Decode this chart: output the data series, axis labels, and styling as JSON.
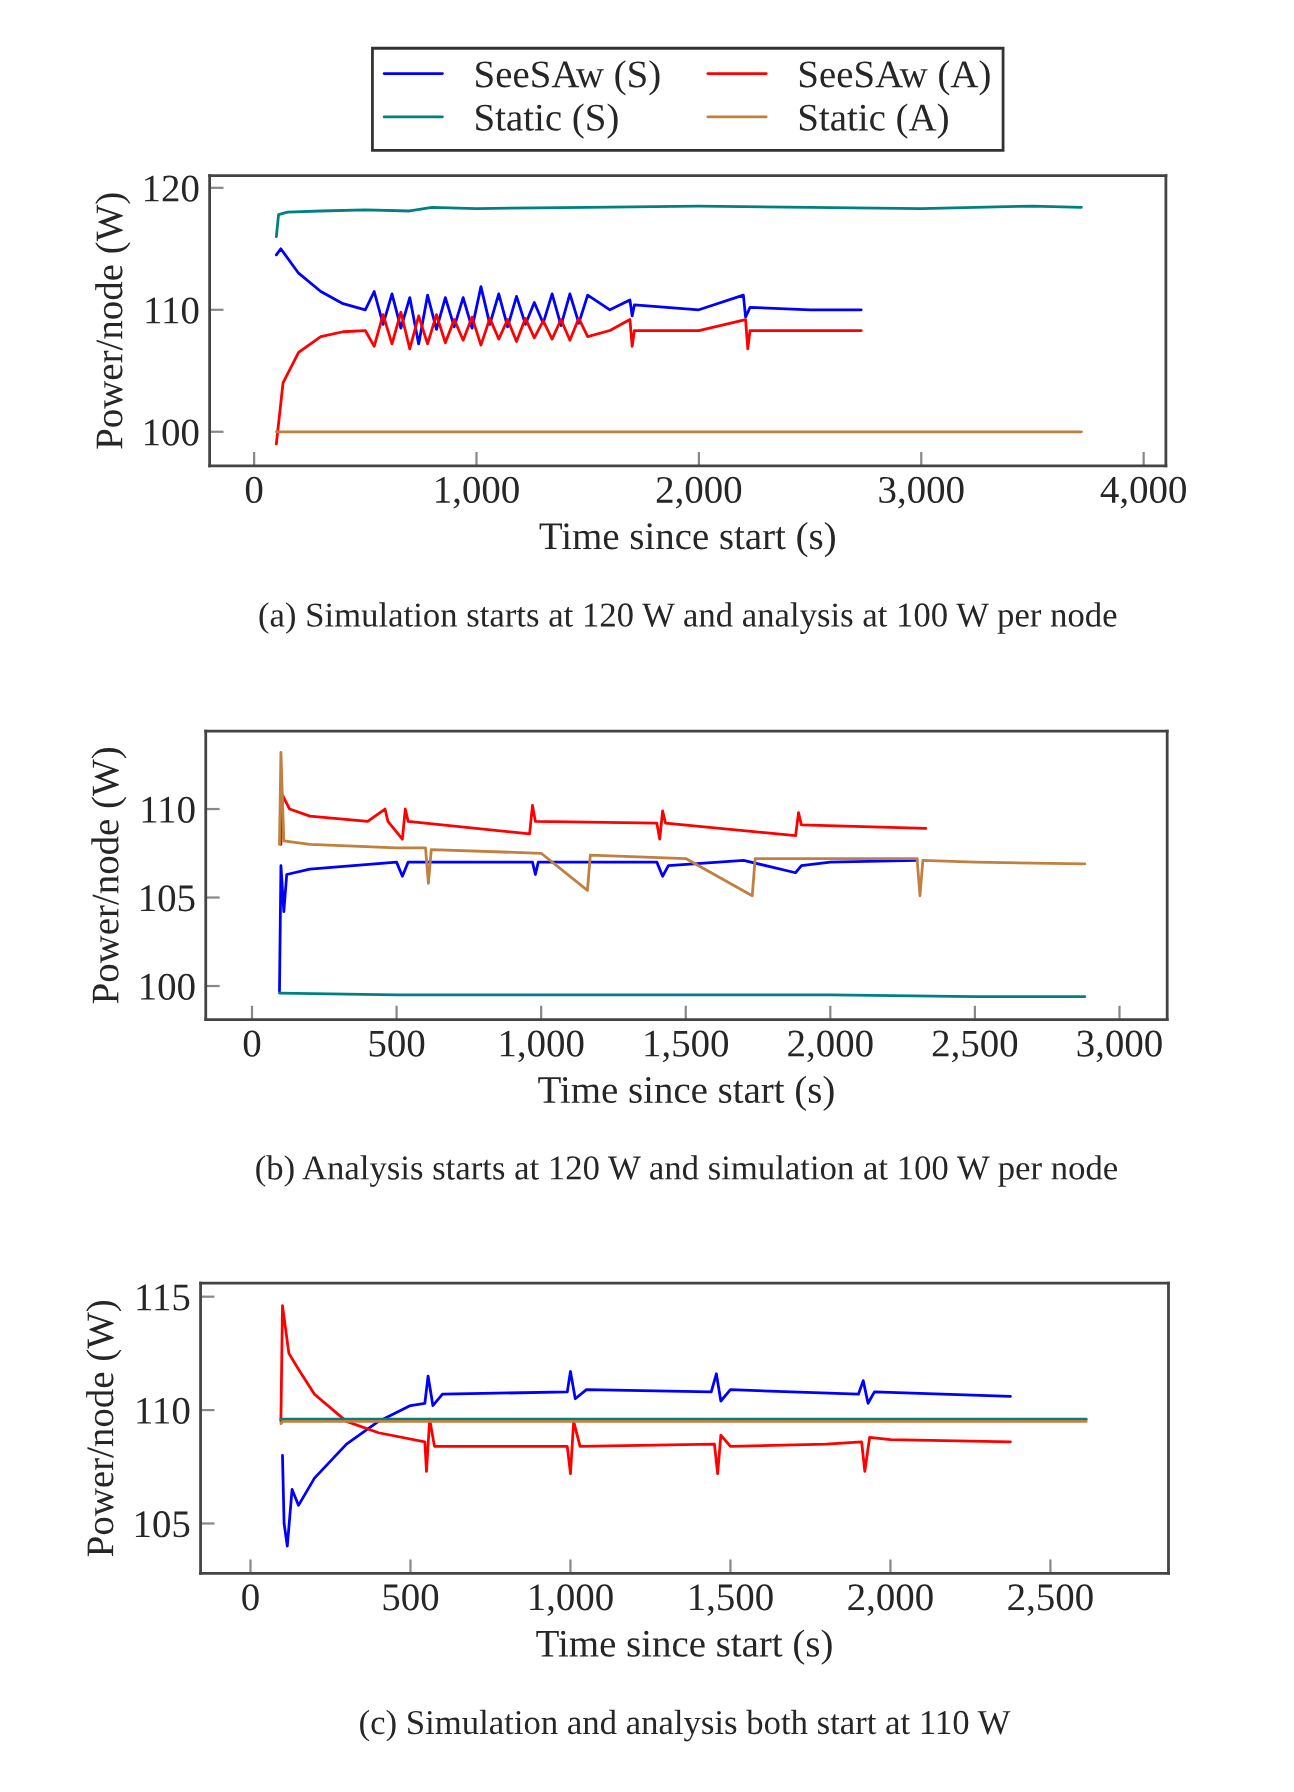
{
  "chart_data": [
    {
      "type": "line",
      "xlabel": "Time since start (s)",
      "ylabel": "Power/node (W)",
      "annotations": [
        "(a) Simulation starts at 120 W and analysis at 100 W per node"
      ],
      "xlim": [
        -200,
        4100
      ],
      "ylim": [
        97.2,
        121
      ],
      "xticks": [
        0,
        {
          "value": 1000,
          "label": "1,000"
        },
        {
          "value": 2000,
          "label": "2,000"
        },
        {
          "value": 3000,
          "label": "3,000"
        },
        {
          "value": 4000,
          "label": "4,000"
        }
      ],
      "yticks": [
        100,
        110,
        120
      ],
      "grid": false,
      "legend": "top",
      "line_style": "solid",
      "marker": "none",
      "series": [
        {
          "name": "SeeSAw (S)",
          "color": "#0000ff",
          "x": [
            100,
            120,
            200,
            300,
            400,
            500,
            540,
            580,
            620,
            660,
            700,
            740,
            780,
            820,
            860,
            900,
            940,
            980,
            1020,
            1060,
            1100,
            1140,
            1180,
            1220,
            1260,
            1300,
            1340,
            1380,
            1420,
            1460,
            1500,
            1600,
            1690,
            1700,
            1710,
            2000,
            2200,
            2210,
            2230,
            2500,
            2730
          ],
          "values": [
            114.5,
            115,
            113,
            111.5,
            110.5,
            110,
            111.5,
            108.8,
            111.3,
            108.5,
            111,
            107.2,
            111.2,
            108.4,
            111,
            108.6,
            111,
            108.5,
            111.9,
            108.8,
            111.3,
            108.6,
            111.1,
            108.8,
            110.6,
            108.9,
            111.3,
            108.7,
            111.3,
            108.9,
            111.2,
            110,
            110.8,
            109.5,
            110.4,
            110,
            111.2,
            109.4,
            110.2,
            110,
            110
          ]
        },
        {
          "name": "SeeSAw (A)",
          "color": "#ff0000",
          "x": [
            100,
            130,
            200,
            300,
            400,
            500,
            540,
            580,
            620,
            660,
            700,
            740,
            780,
            820,
            860,
            900,
            940,
            980,
            1020,
            1060,
            1100,
            1140,
            1180,
            1220,
            1260,
            1300,
            1340,
            1380,
            1420,
            1460,
            1500,
            1600,
            1690,
            1700,
            1710,
            2000,
            2210,
            2220,
            2230,
            2500,
            2730
          ],
          "values": [
            99,
            104,
            106.5,
            107.8,
            108.2,
            108.3,
            107,
            109.6,
            107.2,
            109.8,
            106.8,
            109.5,
            107.2,
            109.6,
            107.3,
            109.2,
            107.5,
            109.4,
            107.1,
            109.3,
            107.6,
            109.2,
            107.4,
            109.3,
            107.7,
            109.1,
            107.6,
            109.2,
            107.5,
            109.3,
            107.8,
            108.3,
            109.2,
            107,
            108.3,
            108.3,
            109.2,
            106.8,
            108.3,
            108.3,
            108.3
          ]
        },
        {
          "name": "Static (S)",
          "color": "#008080",
          "x": [
            100,
            110,
            150,
            300,
            500,
            700,
            800,
            1000,
            1500,
            2000,
            2500,
            3000,
            3500,
            3720
          ],
          "values": [
            116,
            117.8,
            118,
            118.1,
            118.2,
            118.1,
            118.4,
            118.3,
            118.4,
            118.5,
            118.4,
            118.3,
            118.5,
            118.4
          ]
        },
        {
          "name": "Static (A)",
          "color": "#bf8040",
          "x": [
            100,
            1000,
            2000,
            3000,
            3720
          ],
          "values": [
            100,
            100,
            100,
            100,
            100
          ]
        }
      ]
    },
    {
      "type": "line",
      "xlabel": "Time since start (s)",
      "ylabel": "Power/node (W)",
      "annotations": [
        "(b) Analysis starts at 120 W and simulation at 100 W per node"
      ],
      "xlim": [
        -160,
        3165
      ],
      "ylim": [
        98.1,
        114.4
      ],
      "xticks": [
        0,
        500,
        {
          "value": 1000,
          "label": "1,000"
        },
        {
          "value": 1500,
          "label": "1,500"
        },
        {
          "value": 2000,
          "label": "2,000"
        },
        {
          "value": 2500,
          "label": "2,500"
        },
        {
          "value": 3000,
          "label": "3,000"
        }
      ],
      "yticks": [
        100,
        105,
        110
      ],
      "grid": false,
      "line_style": "solid",
      "marker": "none",
      "series": [
        {
          "color": "#0000ff",
          "x": [
            95,
            100,
            110,
            120,
            200,
            500,
            520,
            540,
            970,
            980,
            990,
            1400,
            1420,
            1440,
            1700,
            1880,
            1900,
            2000,
            2300
          ],
          "values": [
            99.7,
            106.8,
            104.2,
            106.3,
            106.6,
            107,
            106.2,
            107,
            107,
            106.3,
            107,
            107,
            106.2,
            106.8,
            107.1,
            106.4,
            106.8,
            107,
            107.1
          ]
        },
        {
          "color": "#ff0000",
          "x": [
            100,
            105,
            130,
            200,
            400,
            460,
            470,
            520,
            530,
            540,
            960,
            970,
            980,
            1400,
            1410,
            1420,
            1430,
            1880,
            1890,
            1900,
            2330
          ],
          "values": [
            108,
            110.8,
            110,
            109.6,
            109.3,
            110,
            109.3,
            108.3,
            110,
            109.3,
            108.6,
            110.2,
            109.3,
            109.2,
            108.3,
            109.9,
            109.2,
            108.5,
            109.8,
            109.1,
            108.9
          ]
        },
        {
          "color": "#008080",
          "x": [
            95,
            500,
            1000,
            1500,
            2000,
            2500,
            2880
          ],
          "values": [
            99.6,
            99.5,
            99.5,
            99.5,
            99.5,
            99.4,
            99.4
          ]
        },
        {
          "color": "#bf8040",
          "x": [
            95,
            100,
            110,
            200,
            500,
            600,
            610,
            620,
            1000,
            1160,
            1170,
            1500,
            1730,
            1740,
            2000,
            2300,
            2310,
            2320,
            2500,
            2880
          ],
          "values": [
            108,
            113.2,
            108.2,
            108,
            107.8,
            107.8,
            105.8,
            107.7,
            107.5,
            105.4,
            107.4,
            107.2,
            105.1,
            107.2,
            107.2,
            107.2,
            105.1,
            107.1,
            107,
            106.9
          ]
        }
      ]
    },
    {
      "type": "line",
      "xlabel": "Time since start (s)",
      "ylabel": "Power/node (W)",
      "annotations": [
        "(c) Simulation and analysis both start at 110 W"
      ],
      "xlim": [
        -156,
        2869
      ],
      "ylim": [
        102.8,
        115.6
      ],
      "xticks": [
        0,
        500,
        {
          "value": 1000,
          "label": "1,000"
        },
        {
          "value": 1500,
          "label": "1,500"
        },
        {
          "value": 2000,
          "label": "2,000"
        },
        {
          "value": 2500,
          "label": "2,500"
        }
      ],
      "yticks": [
        105,
        110,
        115
      ],
      "grid": false,
      "line_style": "solid",
      "marker": "none",
      "series": [
        {
          "color": "#0000ff",
          "x": [
            100,
            105,
            115,
            130,
            150,
            200,
            300,
            400,
            500,
            545,
            555,
            570,
            600,
            990,
            1000,
            1015,
            1050,
            1440,
            1456,
            1470,
            1500,
            1900,
            1915,
            1930,
            1950,
            2375
          ],
          "values": [
            108,
            105,
            104,
            106.5,
            105.8,
            107,
            108.5,
            109.5,
            110.2,
            110.3,
            111.5,
            110.2,
            110.7,
            110.8,
            111.7,
            110.5,
            110.9,
            110.8,
            111.6,
            110.4,
            110.9,
            110.7,
            111.3,
            110.3,
            110.8,
            110.6
          ]
        },
        {
          "color": "#ff0000",
          "x": [
            95,
            100,
            120,
            150,
            200,
            300,
            400,
            545,
            550,
            560,
            575,
            990,
            1000,
            1010,
            1030,
            1450,
            1460,
            1470,
            1500,
            1800,
            1910,
            1920,
            1935,
            2000,
            2375
          ],
          "values": [
            109.5,
            114.6,
            112.5,
            111.8,
            110.7,
            109.5,
            109,
            108.6,
            107.3,
            109.6,
            108.4,
            108.4,
            107.2,
            109.5,
            108.4,
            108.5,
            107.2,
            108.9,
            108.4,
            108.5,
            108.6,
            107.3,
            108.8,
            108.7,
            108.6
          ]
        },
        {
          "color": "#008080",
          "x": [
            95,
            1000,
            2000,
            2612
          ],
          "values": [
            109.6,
            109.6,
            109.6,
            109.6
          ]
        },
        {
          "color": "#bf8040",
          "x": [
            95,
            100,
            1000,
            2000,
            2612
          ],
          "values": [
            109.4,
            109.5,
            109.5,
            109.5,
            109.5
          ]
        }
      ]
    }
  ]
}
